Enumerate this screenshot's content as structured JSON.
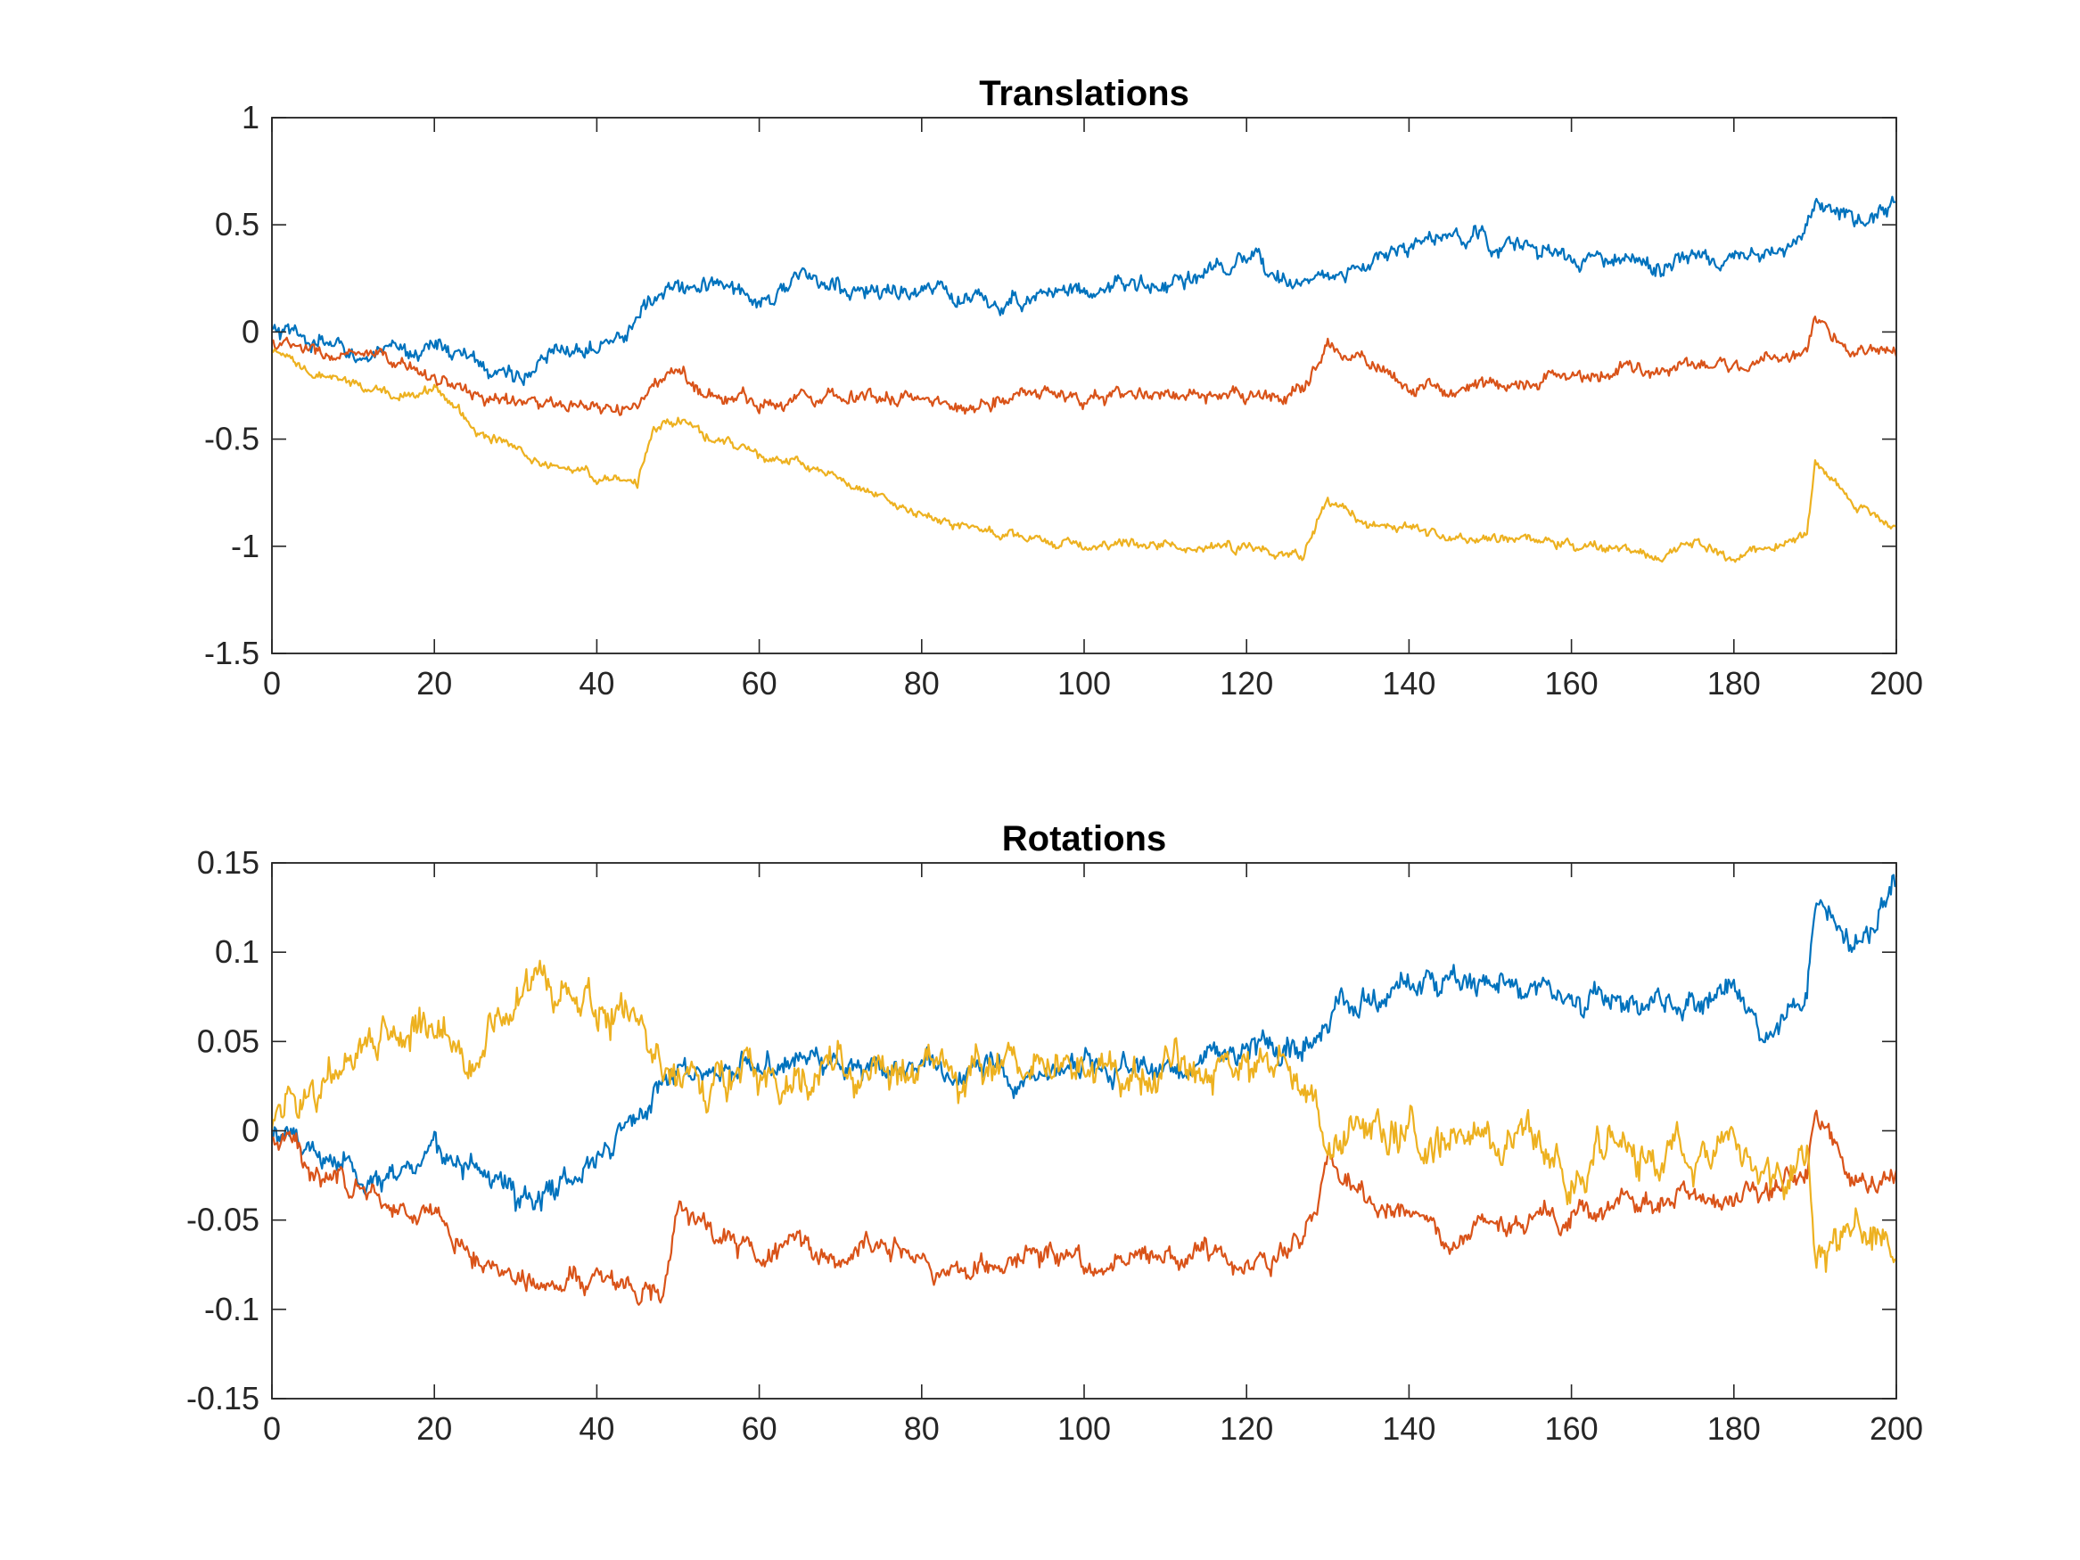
{
  "chart_data": [
    {
      "type": "line",
      "title": "Translations",
      "xlabel": "",
      "ylabel": "",
      "xlim": [
        0,
        200
      ],
      "ylim": [
        -1.5,
        1
      ],
      "xticks": [
        0,
        20,
        40,
        60,
        80,
        100,
        120,
        140,
        160,
        180,
        200
      ],
      "xtick_labels": [
        "0",
        "20",
        "40",
        "60",
        "80",
        "100",
        "120",
        "140",
        "160",
        "180",
        "200"
      ],
      "yticks": [
        -1.5,
        -1,
        -0.5,
        0,
        0.5,
        1
      ],
      "ytick_labels": [
        "-1.5",
        "-1",
        "-0.5",
        "0",
        "0.5",
        "1"
      ],
      "grid": false,
      "legend": "none",
      "x": [
        0,
        5,
        10,
        15,
        20,
        25,
        30,
        35,
        40,
        45,
        47,
        50,
        55,
        60,
        65,
        70,
        75,
        80,
        85,
        90,
        95,
        100,
        105,
        110,
        115,
        120,
        125,
        127,
        130,
        135,
        140,
        145,
        150,
        155,
        160,
        165,
        170,
        175,
        180,
        185,
        189,
        190,
        195,
        200
      ],
      "series": [
        {
          "color": "#0072BD",
          "noise": 0.045,
          "values": [
            0.0,
            -0.05,
            -0.1,
            -0.12,
            -0.05,
            -0.15,
            -0.2,
            -0.12,
            -0.02,
            0.05,
            0.15,
            0.2,
            0.22,
            0.15,
            0.25,
            0.2,
            0.18,
            0.2,
            0.15,
            0.12,
            0.2,
            0.2,
            0.22,
            0.2,
            0.28,
            0.3,
            0.25,
            0.28,
            0.25,
            0.3,
            0.4,
            0.45,
            0.42,
            0.38,
            0.35,
            0.32,
            0.3,
            0.35,
            0.33,
            0.32,
            0.48,
            0.6,
            0.5,
            0.6
          ]
        },
        {
          "color": "#D95319",
          "noise": 0.035,
          "values": [
            -0.05,
            -0.1,
            -0.12,
            -0.15,
            -0.2,
            -0.3,
            -0.32,
            -0.35,
            -0.38,
            -0.35,
            -0.25,
            -0.2,
            -0.3,
            -0.33,
            -0.3,
            -0.28,
            -0.3,
            -0.32,
            -0.35,
            -0.3,
            -0.28,
            -0.32,
            -0.3,
            -0.28,
            -0.32,
            -0.32,
            -0.3,
            -0.25,
            -0.05,
            -0.15,
            -0.25,
            -0.28,
            -0.25,
            -0.22,
            -0.22,
            -0.18,
            -0.2,
            -0.15,
            -0.15,
            -0.12,
            -0.1,
            0.05,
            -0.1,
            -0.1
          ]
        },
        {
          "color": "#EDB120",
          "noise": 0.025,
          "values": [
            -0.1,
            -0.2,
            -0.25,
            -0.3,
            -0.25,
            -0.45,
            -0.55,
            -0.62,
            -0.68,
            -0.7,
            -0.45,
            -0.42,
            -0.5,
            -0.58,
            -0.62,
            -0.7,
            -0.78,
            -0.85,
            -0.9,
            -0.95,
            -0.98,
            -1.0,
            -0.98,
            -1.0,
            -1.0,
            -1.0,
            -1.05,
            -1.05,
            -0.78,
            -0.88,
            -0.9,
            -0.95,
            -0.98,
            -0.95,
            -1.0,
            -1.02,
            -1.05,
            -1.0,
            -1.05,
            -1.0,
            -0.95,
            -0.6,
            -0.8,
            -0.9
          ]
        }
      ]
    },
    {
      "type": "line",
      "title": "Rotations",
      "xlabel": "",
      "ylabel": "",
      "xlim": [
        0,
        200
      ],
      "ylim": [
        -0.15,
        0.15
      ],
      "xticks": [
        0,
        20,
        40,
        60,
        80,
        100,
        120,
        140,
        160,
        180,
        200
      ],
      "xtick_labels": [
        "0",
        "20",
        "40",
        "60",
        "80",
        "100",
        "120",
        "140",
        "160",
        "180",
        "200"
      ],
      "yticks": [
        -0.15,
        -0.1,
        -0.05,
        0,
        0.05,
        0.1,
        0.15
      ],
      "ytick_labels": [
        "-0.15",
        "-0.1",
        "-0.05",
        "0",
        "0.05",
        "0.1",
        "0.15"
      ],
      "grid": false,
      "legend": "none",
      "x": [
        0,
        5,
        10,
        15,
        20,
        25,
        30,
        35,
        40,
        45,
        48,
        50,
        55,
        60,
        65,
        70,
        75,
        80,
        85,
        90,
        95,
        100,
        105,
        110,
        115,
        120,
        125,
        128,
        130,
        135,
        140,
        145,
        150,
        155,
        160,
        165,
        170,
        175,
        180,
        185,
        189,
        190,
        195,
        200
      ],
      "series": [
        {
          "color": "#0072BD",
          "noise": 0.008,
          "values": [
            0.0,
            -0.01,
            -0.02,
            -0.03,
            -0.01,
            -0.02,
            -0.04,
            -0.03,
            -0.01,
            0.01,
            0.03,
            0.03,
            0.04,
            0.035,
            0.04,
            0.035,
            0.04,
            0.035,
            0.04,
            0.035,
            0.03,
            0.035,
            0.04,
            0.03,
            0.04,
            0.05,
            0.05,
            0.055,
            0.06,
            0.07,
            0.08,
            0.09,
            0.085,
            0.08,
            0.075,
            0.08,
            0.07,
            0.075,
            0.08,
            0.05,
            0.08,
            0.13,
            0.1,
            0.14
          ]
        },
        {
          "color": "#D95319",
          "noise": 0.007,
          "values": [
            0.0,
            -0.02,
            -0.03,
            -0.04,
            -0.05,
            -0.07,
            -0.08,
            -0.08,
            -0.085,
            -0.09,
            -0.09,
            -0.05,
            -0.06,
            -0.07,
            -0.065,
            -0.07,
            -0.06,
            -0.075,
            -0.08,
            -0.07,
            -0.065,
            -0.075,
            -0.07,
            -0.07,
            -0.065,
            -0.075,
            -0.07,
            -0.05,
            -0.02,
            -0.04,
            -0.05,
            -0.06,
            -0.055,
            -0.05,
            -0.045,
            -0.04,
            -0.04,
            -0.035,
            -0.04,
            -0.03,
            -0.02,
            0.01,
            -0.03,
            -0.025
          ]
        },
        {
          "color": "#EDB120",
          "noise": 0.012,
          "values": [
            0.01,
            0.02,
            0.04,
            0.05,
            0.06,
            0.04,
            0.08,
            0.085,
            0.07,
            0.065,
            0.03,
            0.035,
            0.03,
            0.035,
            0.025,
            0.04,
            0.035,
            0.04,
            0.03,
            0.035,
            0.03,
            0.03,
            0.035,
            0.04,
            0.03,
            0.035,
            0.03,
            0.03,
            -0.01,
            0.0,
            0.0,
            -0.01,
            -0.005,
            0.0,
            -0.02,
            -0.01,
            -0.01,
            -0.02,
            -0.01,
            -0.03,
            -0.02,
            -0.08,
            -0.05,
            -0.06
          ]
        }
      ]
    }
  ]
}
